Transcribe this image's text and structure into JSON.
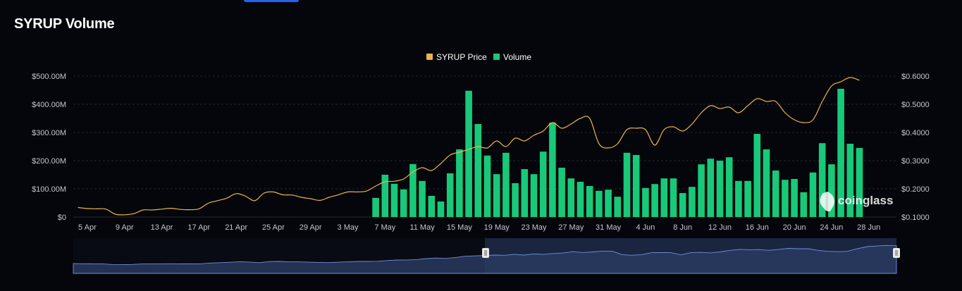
{
  "page": {
    "title": "SYRUP Volume"
  },
  "watermark": "coinglass",
  "colors": {
    "background": "#05060b",
    "price": "#e9b448",
    "volume": "#17c978",
    "grid": "#23262e",
    "navigator": "#22304f"
  },
  "chart_data": {
    "type": "bar",
    "legend": {
      "position": "top-center",
      "items": [
        "SYRUP Price",
        "Volume"
      ]
    },
    "x_start": "4 Apr",
    "x_end": "28 Jun",
    "x_tick_labels": [
      "5 Apr",
      "9 Apr",
      "13 Apr",
      "17 Apr",
      "21 Apr",
      "25 Apr",
      "29 Apr",
      "3 May",
      "7 May",
      "11 May",
      "15 May",
      "19 May",
      "23 May",
      "27 May",
      "31 May",
      "4 Jun",
      "8 Jun",
      "12 Jun",
      "16 Jun",
      "20 Jun",
      "24 Jun",
      "28 Jun"
    ],
    "y_left": {
      "ticks": [
        "$0",
        "$100.00M",
        "$200.00M",
        "$300.00M",
        "$400.00M",
        "$500.00M"
      ],
      "range": [
        0,
        500
      ]
    },
    "y_right": {
      "ticks": [
        "$0.1000",
        "$0.2000",
        "$0.3000",
        "$0.4000",
        "$0.5000",
        "$0.6000"
      ],
      "range": [
        0.1,
        0.6
      ]
    },
    "grid": true,
    "series": [
      {
        "name": "Volume",
        "kind": "bar",
        "unit": "M USD",
        "points": [
          [
            "6 May",
            68
          ],
          [
            "7 May",
            150
          ],
          [
            "8 May",
            118
          ],
          [
            "9 May",
            98
          ],
          [
            "10 May",
            188
          ],
          [
            "11 May",
            128
          ],
          [
            "12 May",
            75
          ],
          [
            "13 May",
            55
          ],
          [
            "14 May",
            155
          ],
          [
            "15 May",
            240
          ],
          [
            "16 May",
            448
          ],
          [
            "17 May",
            330
          ],
          [
            "18 May",
            218
          ],
          [
            "19 May",
            152
          ],
          [
            "20 May",
            228
          ],
          [
            "21 May",
            120
          ],
          [
            "22 May",
            170
          ],
          [
            "23 May",
            152
          ],
          [
            "24 May",
            232
          ],
          [
            "25 May",
            335
          ],
          [
            "26 May",
            175
          ],
          [
            "27 May",
            137
          ],
          [
            "28 May",
            125
          ],
          [
            "29 May",
            110
          ],
          [
            "30 May",
            93
          ],
          [
            "31 May",
            97
          ],
          [
            "1 Jun",
            72
          ],
          [
            "2 Jun",
            228
          ],
          [
            "3 Jun",
            220
          ],
          [
            "4 Jun",
            103
          ],
          [
            "5 Jun",
            117
          ],
          [
            "6 Jun",
            137
          ],
          [
            "7 Jun",
            137
          ],
          [
            "8 Jun",
            85
          ],
          [
            "9 Jun",
            107
          ],
          [
            "10 Jun",
            187
          ],
          [
            "11 Jun",
            207
          ],
          [
            "12 Jun",
            200
          ],
          [
            "13 Jun",
            212
          ],
          [
            "14 Jun",
            128
          ],
          [
            "15 Jun",
            128
          ],
          [
            "16 Jun",
            295
          ],
          [
            "17 Jun",
            240
          ],
          [
            "18 Jun",
            165
          ],
          [
            "19 Jun",
            132
          ],
          [
            "20 Jun",
            135
          ],
          [
            "21 Jun",
            88
          ],
          [
            "22 Jun",
            158
          ],
          [
            "23 Jun",
            262
          ],
          [
            "24 Jun",
            187
          ],
          [
            "25 Jun",
            455
          ],
          [
            "26 Jun",
            260
          ],
          [
            "27 Jun",
            245
          ]
        ]
      },
      {
        "name": "SYRUP Price",
        "kind": "line",
        "unit": "USD",
        "points": [
          [
            "4 Apr",
            0.134
          ],
          [
            "5 Apr",
            0.13
          ],
          [
            "6 Apr",
            0.129
          ],
          [
            "7 Apr",
            0.128
          ],
          [
            "8 Apr",
            0.11
          ],
          [
            "9 Apr",
            0.108
          ],
          [
            "10 Apr",
            0.112
          ],
          [
            "11 Apr",
            0.125
          ],
          [
            "12 Apr",
            0.125
          ],
          [
            "13 Apr",
            0.128
          ],
          [
            "14 Apr",
            0.131
          ],
          [
            "15 Apr",
            0.127
          ],
          [
            "16 Apr",
            0.126
          ],
          [
            "17 Apr",
            0.129
          ],
          [
            "18 Apr",
            0.149
          ],
          [
            "19 Apr",
            0.158
          ],
          [
            "20 Apr",
            0.167
          ],
          [
            "21 Apr",
            0.183
          ],
          [
            "22 Apr",
            0.174
          ],
          [
            "23 Apr",
            0.158
          ],
          [
            "24 Apr",
            0.185
          ],
          [
            "25 Apr",
            0.189
          ],
          [
            "26 Apr",
            0.179
          ],
          [
            "27 Apr",
            0.178
          ],
          [
            "28 Apr",
            0.17
          ],
          [
            "29 Apr",
            0.165
          ],
          [
            "30 Apr",
            0.159
          ],
          [
            "1 May",
            0.17
          ],
          [
            "2 May",
            0.179
          ],
          [
            "3 May",
            0.189
          ],
          [
            "4 May",
            0.189
          ],
          [
            "5 May",
            0.192
          ],
          [
            "6 May",
            0.21
          ],
          [
            "7 May",
            0.225
          ],
          [
            "8 May",
            0.227
          ],
          [
            "9 May",
            0.235
          ],
          [
            "10 May",
            0.26
          ],
          [
            "11 May",
            0.275
          ],
          [
            "12 May",
            0.265
          ],
          [
            "13 May",
            0.29
          ],
          [
            "14 May",
            0.32
          ],
          [
            "15 May",
            0.33
          ],
          [
            "16 May",
            0.34
          ],
          [
            "17 May",
            0.35
          ],
          [
            "18 May",
            0.345
          ],
          [
            "19 May",
            0.37
          ],
          [
            "20 May",
            0.35
          ],
          [
            "21 May",
            0.38
          ],
          [
            "22 May",
            0.37
          ],
          [
            "23 May",
            0.39
          ],
          [
            "24 May",
            0.405
          ],
          [
            "25 May",
            0.435
          ],
          [
            "26 May",
            0.415
          ],
          [
            "27 May",
            0.43
          ],
          [
            "28 May",
            0.45
          ],
          [
            "29 May",
            0.45
          ],
          [
            "30 May",
            0.36
          ],
          [
            "31 May",
            0.345
          ],
          [
            "1 Jun",
            0.36
          ],
          [
            "2 Jun",
            0.41
          ],
          [
            "3 Jun",
            0.415
          ],
          [
            "4 Jun",
            0.41
          ],
          [
            "5 Jun",
            0.355
          ],
          [
            "6 Jun",
            0.41
          ],
          [
            "7 Jun",
            0.42
          ],
          [
            "8 Jun",
            0.405
          ],
          [
            "9 Jun",
            0.43
          ],
          [
            "10 Jun",
            0.47
          ],
          [
            "11 Jun",
            0.495
          ],
          [
            "12 Jun",
            0.485
          ],
          [
            "13 Jun",
            0.49
          ],
          [
            "14 Jun",
            0.47
          ],
          [
            "15 Jun",
            0.495
          ],
          [
            "16 Jun",
            0.52
          ],
          [
            "17 Jun",
            0.51
          ],
          [
            "18 Jun",
            0.51
          ],
          [
            "19 Jun",
            0.47
          ],
          [
            "20 Jun",
            0.445
          ],
          [
            "21 Jun",
            0.435
          ],
          [
            "22 Jun",
            0.445
          ],
          [
            "23 Jun",
            0.51
          ],
          [
            "24 Jun",
            0.565
          ],
          [
            "25 Jun",
            0.58
          ],
          [
            "26 Jun",
            0.595
          ],
          [
            "27 Jun",
            0.585
          ]
        ]
      }
    ]
  }
}
